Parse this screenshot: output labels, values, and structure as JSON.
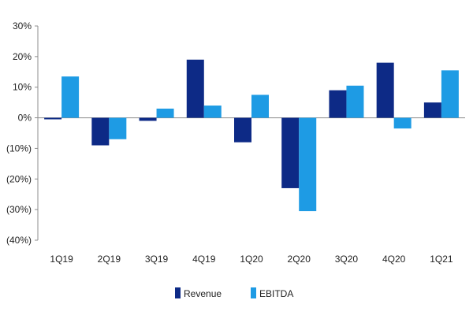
{
  "chart_data": {
    "type": "bar",
    "categories": [
      "1Q19",
      "2Q19",
      "3Q19",
      "4Q19",
      "1Q20",
      "2Q20",
      "3Q20",
      "4Q20",
      "1Q21"
    ],
    "series": [
      {
        "name": "Revenue",
        "color": "#0d2a86",
        "values": [
          -0.5,
          -9,
          -1,
          19,
          -8,
          -23,
          9,
          18,
          5
        ]
      },
      {
        "name": "EBITDA",
        "color": "#1e9be4",
        "values": [
          13.5,
          -7,
          3,
          4,
          7.5,
          -30.5,
          10.5,
          -3.5,
          15.5
        ]
      }
    ],
    "ylim": [
      -40,
      30
    ],
    "yticks": [
      30,
      20,
      10,
      0,
      -10,
      -20,
      -30,
      -40
    ],
    "ytick_labels": [
      "30%",
      "20%",
      "10%",
      "0%",
      "(10%)",
      "(20%)",
      "(30%)",
      "(40%)"
    ],
    "legend_position": "bottom-center",
    "grid": false
  }
}
